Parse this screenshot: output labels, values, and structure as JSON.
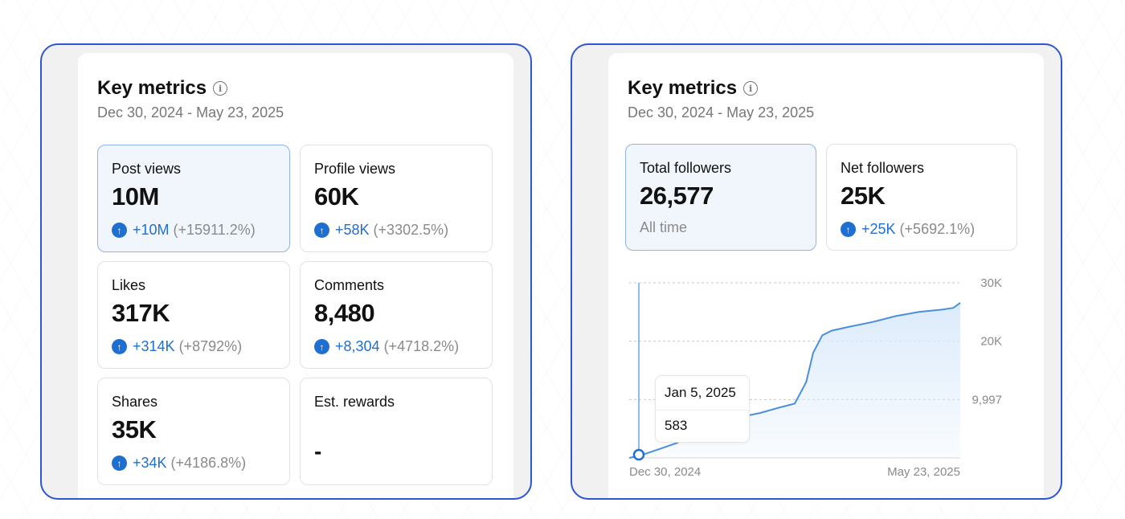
{
  "left_panel": {
    "title": "Key metrics",
    "date_range": "Dec 30, 2024 - May 23, 2025",
    "tiles": [
      {
        "label": "Post views",
        "value": "10M",
        "delta": "+10M",
        "pct": "(+15911.2%)",
        "selected": true
      },
      {
        "label": "Profile views",
        "value": "60K",
        "delta": "+58K",
        "pct": "(+3302.5%)",
        "selected": false
      },
      {
        "label": "Likes",
        "value": "317K",
        "delta": "+314K",
        "pct": "(+8792%)",
        "selected": false
      },
      {
        "label": "Comments",
        "value": "8,480",
        "delta": "+8,304",
        "pct": "(+4718.2%)",
        "selected": false
      },
      {
        "label": "Shares",
        "value": "35K",
        "delta": "+34K",
        "pct": "(+4186.8%)",
        "selected": false
      },
      {
        "label": "Est. rewards",
        "value": "-",
        "selected": false
      }
    ]
  },
  "right_panel": {
    "title": "Key metrics",
    "date_range": "Dec 30, 2024 - May 23, 2025",
    "tiles": [
      {
        "label": "Total followers",
        "value": "26,577",
        "sub": "All time",
        "selected": true
      },
      {
        "label": "Net followers",
        "value": "25K",
        "delta": "+25K",
        "pct": "(+5692.1%)",
        "selected": false
      }
    ],
    "tooltip": {
      "date": "Jan 5, 2025",
      "value": "583"
    }
  },
  "colors": {
    "accent": "#1f6fd1",
    "frame_border": "#2f55d4",
    "line": "#4a8fde",
    "area": "#dcebfb"
  },
  "icons": {
    "info": "info-icon",
    "up": "arrow-up-circle-icon"
  },
  "chart_data": {
    "type": "area",
    "x_ticks": [
      "Dec 30, 2024",
      "May 23, 2025"
    ],
    "y_ticks": [
      "30K",
      "20K",
      "9,997"
    ],
    "ylim": [
      0,
      30000
    ],
    "grid": true,
    "x": [
      "2024-12-30",
      "2025-01-05",
      "2025-01-12",
      "2025-01-20",
      "2025-01-28",
      "2025-02-05",
      "2025-02-15",
      "2025-02-25",
      "2025-03-05",
      "2025-03-12",
      "2025-03-17",
      "2025-03-20",
      "2025-03-24",
      "2025-03-28",
      "2025-04-05",
      "2025-04-15",
      "2025-04-25",
      "2025-05-05",
      "2025-05-15",
      "2025-05-20",
      "2025-05-23"
    ],
    "series": [
      {
        "values": [
          0,
          583,
          1500,
          2600,
          4900,
          6000,
          6900,
          7700,
          8600,
          9300,
          13000,
          18000,
          21000,
          21800,
          22500,
          23300,
          24300,
          25000,
          25400,
          25700,
          26577
        ]
      }
    ]
  }
}
